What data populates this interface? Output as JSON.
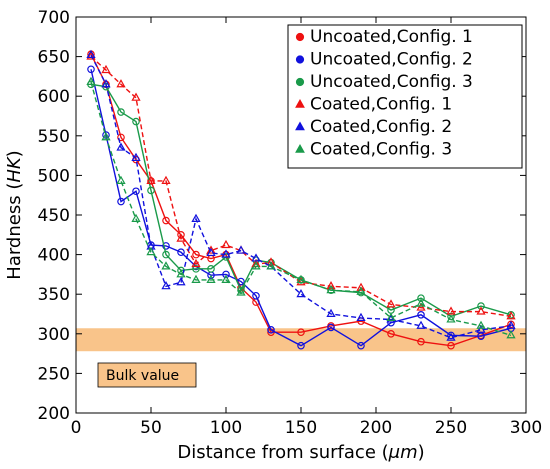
{
  "chart_data": {
    "type": "line",
    "xlabel_prefix": "Distance from surface (",
    "xlabel_unit": "μm",
    "xlabel_suffix": ")",
    "ylabel_prefix": "Hardness (",
    "ylabel_unit": "HK",
    "ylabel_suffix": ")",
    "xlim": [
      0,
      300
    ],
    "ylim": [
      200,
      700
    ],
    "xticks": [
      0,
      50,
      100,
      150,
      200,
      250,
      300
    ],
    "yticks": [
      200,
      250,
      300,
      350,
      400,
      450,
      500,
      550,
      600,
      650,
      700
    ],
    "grid": false,
    "legend_position": "top-right",
    "band": {
      "range": [
        278,
        307
      ],
      "color": "#f9c48a",
      "label": "Bulk value"
    },
    "series": [
      {
        "name": "Uncoated,Config. 1",
        "color": "#ee1111",
        "marker": "circle",
        "dash": false,
        "x": [
          10,
          20,
          30,
          40,
          50,
          60,
          70,
          80,
          90,
          100,
          110,
          120,
          130,
          150,
          170,
          190,
          210,
          230,
          250,
          270,
          290
        ],
        "y": [
          653,
          615,
          548,
          520,
          493,
          443,
          425,
          400,
          395,
          400,
          358,
          340,
          302,
          302,
          310,
          316,
          300,
          290,
          285,
          298,
          312
        ]
      },
      {
        "name": "Uncoated,Config. 2",
        "color": "#1111dd",
        "marker": "circle",
        "dash": false,
        "x": [
          10,
          20,
          30,
          40,
          50,
          60,
          70,
          80,
          90,
          100,
          110,
          120,
          130,
          150,
          170,
          190,
          210,
          230,
          250,
          270,
          290
        ],
        "y": [
          634,
          551,
          467,
          480,
          412,
          411,
          403,
          385,
          374,
          375,
          366,
          348,
          305,
          285,
          308,
          285,
          314,
          324,
          298,
          297,
          307
        ]
      },
      {
        "name": "Uncoated,Config. 3",
        "color": "#1a9a4a",
        "marker": "circle",
        "dash": false,
        "x": [
          10,
          20,
          30,
          40,
          50,
          60,
          70,
          80,
          90,
          100,
          110,
          120,
          130,
          150,
          170,
          190,
          210,
          230,
          250,
          270,
          290
        ],
        "y": [
          615,
          612,
          580,
          568,
          481,
          400,
          380,
          382,
          382,
          397,
          355,
          393,
          390,
          368,
          355,
          352,
          330,
          345,
          322,
          335,
          324
        ]
      },
      {
        "name": "Coated,Config. 1",
        "color": "#ee1111",
        "marker": "triangle",
        "dash": true,
        "x": [
          10,
          20,
          30,
          40,
          50,
          60,
          70,
          80,
          90,
          100,
          110,
          120,
          130,
          150,
          170,
          190,
          210,
          230,
          250,
          270,
          290
        ],
        "y": [
          650,
          633,
          615,
          598,
          493,
          493,
          420,
          388,
          405,
          412,
          405,
          388,
          390,
          365,
          360,
          358,
          337,
          333,
          328,
          328,
          322
        ]
      },
      {
        "name": "Coated,Config. 2",
        "color": "#1111dd",
        "marker": "triangle",
        "dash": true,
        "x": [
          10,
          20,
          30,
          40,
          50,
          60,
          70,
          80,
          90,
          100,
          110,
          120,
          130,
          150,
          170,
          190,
          210,
          230,
          250,
          270,
          290
        ],
        "y": [
          652,
          615,
          535,
          522,
          410,
          360,
          365,
          445,
          402,
          400,
          405,
          395,
          385,
          350,
          325,
          320,
          318,
          310,
          295,
          305,
          310
        ]
      },
      {
        "name": "Coated,Config. 3",
        "color": "#1a9a4a",
        "marker": "triangle",
        "dash": true,
        "x": [
          10,
          20,
          30,
          40,
          50,
          60,
          70,
          80,
          90,
          100,
          110,
          120,
          130,
          150,
          170,
          190,
          210,
          230,
          250,
          270,
          290
        ],
        "y": [
          618,
          548,
          493,
          445,
          403,
          385,
          375,
          368,
          368,
          368,
          352,
          385,
          385,
          368,
          355,
          353,
          320,
          338,
          318,
          310,
          298
        ]
      }
    ]
  }
}
